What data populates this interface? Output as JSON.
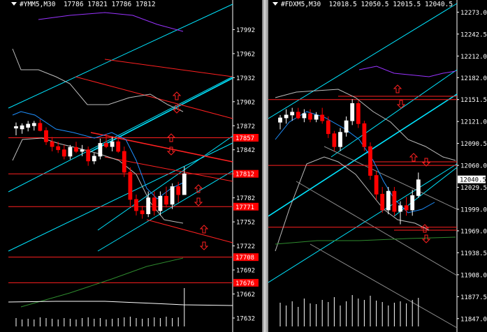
{
  "chart_data": [
    {
      "type": "candlestick",
      "symbol_label": "#YMM5,M30",
      "ohlc_header": [
        "17786",
        "17821",
        "17786",
        "17812"
      ],
      "ylim": [
        17625,
        18015
      ],
      "y_ticks": [
        17992,
        17962,
        17932,
        17902,
        17872,
        17842,
        17812,
        17782,
        17752,
        17722,
        17692,
        17662,
        17632
      ],
      "level_labels": [
        {
          "value": 17857,
          "text": "17857"
        },
        {
          "value": 17812,
          "text": "17812"
        },
        {
          "value": 17771,
          "text": "17771"
        },
        {
          "value": 17708,
          "text": "17708"
        },
        {
          "value": 17676,
          "text": "17676"
        }
      ],
      "colors": {
        "bull": "#ffffff",
        "bear": "#ff0000",
        "channel": "#00e5ff",
        "resistance": "#ff2020",
        "band": "#bdbdbd",
        "ma_fast": "#1e90ff",
        "ma_slow": "#9933ff",
        "ma_green": "#2e8b2e"
      },
      "candles": [
        {
          "o": 17869,
          "h": 17876,
          "l": 17860,
          "c": 17871
        },
        {
          "o": 17868,
          "h": 17875,
          "l": 17862,
          "c": 17872
        },
        {
          "o": 17870,
          "h": 17878,
          "l": 17865,
          "c": 17874
        },
        {
          "o": 17872,
          "h": 17878,
          "l": 17866,
          "c": 17875
        },
        {
          "o": 17875,
          "h": 17880,
          "l": 17865,
          "c": 17866
        },
        {
          "o": 17866,
          "h": 17870,
          "l": 17848,
          "c": 17852
        },
        {
          "o": 17852,
          "h": 17858,
          "l": 17840,
          "c": 17846
        },
        {
          "o": 17846,
          "h": 17852,
          "l": 17838,
          "c": 17842
        },
        {
          "o": 17842,
          "h": 17848,
          "l": 17830,
          "c": 17834
        },
        {
          "o": 17834,
          "h": 17848,
          "l": 17830,
          "c": 17845
        },
        {
          "o": 17845,
          "h": 17852,
          "l": 17838,
          "c": 17840
        },
        {
          "o": 17840,
          "h": 17848,
          "l": 17834,
          "c": 17842
        },
        {
          "o": 17842,
          "h": 17846,
          "l": 17822,
          "c": 17828
        },
        {
          "o": 17828,
          "h": 17838,
          "l": 17824,
          "c": 17834
        },
        {
          "o": 17834,
          "h": 17856,
          "l": 17830,
          "c": 17850
        },
        {
          "o": 17850,
          "h": 17862,
          "l": 17844,
          "c": 17846
        },
        {
          "o": 17846,
          "h": 17858,
          "l": 17840,
          "c": 17852
        },
        {
          "o": 17852,
          "h": 17858,
          "l": 17838,
          "c": 17840
        },
        {
          "o": 17840,
          "h": 17846,
          "l": 17808,
          "c": 17814
        },
        {
          "o": 17814,
          "h": 17820,
          "l": 17772,
          "c": 17780
        },
        {
          "o": 17780,
          "h": 17786,
          "l": 17760,
          "c": 17766
        },
        {
          "o": 17766,
          "h": 17772,
          "l": 17756,
          "c": 17762
        },
        {
          "o": 17762,
          "h": 17790,
          "l": 17758,
          "c": 17782
        },
        {
          "o": 17782,
          "h": 17790,
          "l": 17760,
          "c": 17766
        },
        {
          "o": 17766,
          "h": 17790,
          "l": 17760,
          "c": 17784
        },
        {
          "o": 17784,
          "h": 17796,
          "l": 17770,
          "c": 17774
        },
        {
          "o": 17774,
          "h": 17800,
          "l": 17768,
          "c": 17796
        },
        {
          "o": 17796,
          "h": 17802,
          "l": 17776,
          "c": 17786
        },
        {
          "o": 17786,
          "h": 17821,
          "l": 17786,
          "c": 17812
        }
      ],
      "volume_ylim": [
        0,
        60
      ],
      "volume": [
        12,
        10,
        11,
        10,
        13,
        12,
        11,
        10,
        12,
        11,
        10,
        12,
        13,
        11,
        12,
        10,
        11,
        12,
        13,
        14,
        12,
        11,
        12,
        13,
        12,
        14,
        12,
        13,
        55
      ]
    },
    {
      "type": "candlestick",
      "symbol_label": "#FDXM5,M30",
      "ohlc_header": [
        "12018.5",
        "12050.5",
        "12015.5",
        "12040.5"
      ],
      "ylim": [
        11840,
        12286
      ],
      "y_ticks": [
        12273.0,
        12242.5,
        12212.0,
        12182.0,
        12151.5,
        12121.0,
        12090.5,
        12060.0,
        12029.5,
        11999.0,
        11969.0,
        11938.5,
        11908.0,
        11877.5,
        11847.0
      ],
      "tick_labels": [
        "12273.0",
        "12242.5",
        "12212.0",
        "12182.0",
        "12151.5",
        "12121.0",
        "12090.5",
        "12060.0",
        "12029.5",
        "11999.0",
        "11969.0",
        "11938.5",
        "11908.0",
        "11877.5",
        "11847.0"
      ],
      "current_price": {
        "value": 12040.5,
        "text": "12040.5"
      },
      "colors": {
        "bull": "#ffffff",
        "bear": "#ff0000",
        "channel": "#00e5ff",
        "resistance": "#ff2020",
        "band": "#bdbdbd",
        "ma_fast": "#1e90ff",
        "ma_slow": "#9933ff",
        "ma_green": "#2e8b2e"
      },
      "candles": [
        {
          "o": 12120,
          "h": 12130,
          "l": 12110,
          "c": 12126
        },
        {
          "o": 12126,
          "h": 12138,
          "l": 12118,
          "c": 12130
        },
        {
          "o": 12130,
          "h": 12140,
          "l": 12122,
          "c": 12134
        },
        {
          "o": 12134,
          "h": 12140,
          "l": 12124,
          "c": 12126
        },
        {
          "o": 12126,
          "h": 12138,
          "l": 12120,
          "c": 12132
        },
        {
          "o": 12132,
          "h": 12138,
          "l": 12120,
          "c": 12124
        },
        {
          "o": 12124,
          "h": 12134,
          "l": 12120,
          "c": 12130
        },
        {
          "o": 12130,
          "h": 12140,
          "l": 12118,
          "c": 12122
        },
        {
          "o": 12122,
          "h": 12128,
          "l": 12098,
          "c": 12104
        },
        {
          "o": 12104,
          "h": 12108,
          "l": 12080,
          "c": 12086
        },
        {
          "o": 12086,
          "h": 12112,
          "l": 12080,
          "c": 12106
        },
        {
          "o": 12106,
          "h": 12128,
          "l": 12100,
          "c": 12122
        },
        {
          "o": 12122,
          "h": 12152,
          "l": 12116,
          "c": 12146
        },
        {
          "o": 12146,
          "h": 12150,
          "l": 12112,
          "c": 12118
        },
        {
          "o": 12118,
          "h": 12122,
          "l": 12080,
          "c": 12086
        },
        {
          "o": 12086,
          "h": 12092,
          "l": 12040,
          "c": 12046
        },
        {
          "o": 12046,
          "h": 12052,
          "l": 12012,
          "c": 12020
        },
        {
          "o": 12020,
          "h": 12030,
          "l": 11994,
          "c": 11998
        },
        {
          "o": 11998,
          "h": 12030,
          "l": 11992,
          "c": 12024
        },
        {
          "o": 12024,
          "h": 12030,
          "l": 11990,
          "c": 11996
        },
        {
          "o": 11996,
          "h": 12010,
          "l": 11978,
          "c": 12004
        },
        {
          "o": 12004,
          "h": 12016,
          "l": 11990,
          "c": 11998
        },
        {
          "o": 11998,
          "h": 12026,
          "l": 11990,
          "c": 12018
        },
        {
          "o": 12018,
          "h": 12050,
          "l": 12015,
          "c": 12040
        }
      ],
      "volume_ylim": [
        0,
        60
      ],
      "volume": [
        34,
        30,
        36,
        28,
        40,
        33,
        32,
        38,
        35,
        42,
        30,
        36,
        45,
        40,
        38,
        44,
        37,
        35,
        30,
        34,
        36,
        33,
        38,
        41
      ]
    }
  ]
}
